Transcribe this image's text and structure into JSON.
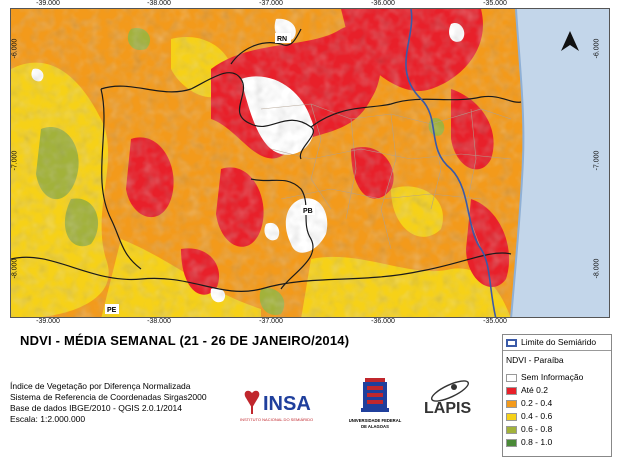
{
  "map": {
    "ticks_top": [
      "-39.000",
      "-38.000",
      "-37.000",
      "-36.000",
      "-35.000"
    ],
    "ticks_bottom": [
      "-39.000",
      "-38.000",
      "-37.000",
      "-36.000",
      "-35.000"
    ],
    "ticks_left": [
      "-6.000",
      "-7.000",
      "-8.000"
    ],
    "ticks_right": [
      "-6.000",
      "-7.000",
      "-8.000"
    ],
    "state_labels": [
      "RN",
      "PB",
      "PE"
    ],
    "colors": {
      "none": "#ffffff",
      "c1": "#e8202a",
      "c2": "#f39a1b",
      "c3": "#f6d118",
      "c4": "#a2b23a",
      "c5": "#4a8a37",
      "ocean": "#c3d6ea",
      "semiarid": "#3a5aa8"
    }
  },
  "title": "NDVI - MÉDIA SEMANAL (21 - 26 DE JANEIRO/2014)",
  "info_lines": [
    "Índice de Vegetação por Diferença Normalizada",
    "Sistema de Referencia de Coordenadas Sirgas2000",
    "Base de dados IBGE/2010 - QGIS 2.0.1/2014",
    "Escala: 1:2.000.000"
  ],
  "logos": {
    "insa_text": "INSA",
    "insa_sub": "INSTITUTO NACIONAL DO SEMIÁRIDO",
    "ufal_sub1": "UNIVERSIDADE FEDERAL",
    "ufal_sub2": "DE ALAGOAS",
    "lapis_text": "LAPIS"
  },
  "legend": {
    "boundary_label": "Limite do Semiárido",
    "layer_title": "NDVI - Paraíba",
    "items": [
      {
        "label": "Sem Informação",
        "color": "#ffffff"
      },
      {
        "label": "Até 0.2",
        "color": "#e8202a"
      },
      {
        "label": "0.2 - 0.4",
        "color": "#f39a1b"
      },
      {
        "label": "0.4 - 0.6",
        "color": "#f6d118"
      },
      {
        "label": "0.6 - 0.8",
        "color": "#a2b23a"
      },
      {
        "label": "0.8 - 1.0",
        "color": "#4a8a37"
      }
    ]
  }
}
